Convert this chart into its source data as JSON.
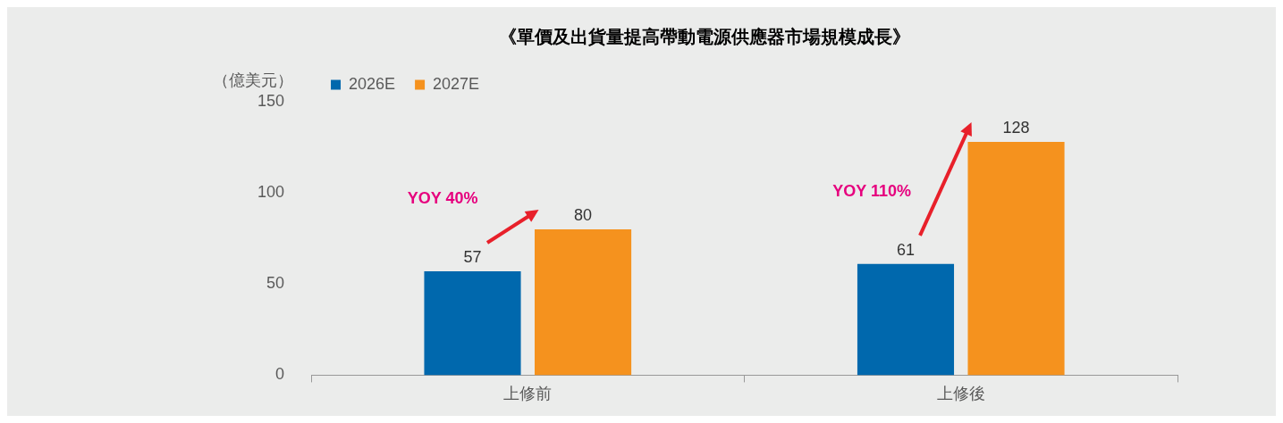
{
  "chart_data": {
    "type": "bar",
    "title": "《單價及出貨量提高帶動電源供應器市場規模成長》",
    "ylabel": "（億美元）",
    "categories": [
      "上修前",
      "上修後"
    ],
    "series": [
      {
        "name": "2026E",
        "color": "#0068ad",
        "values": [
          57,
          61
        ]
      },
      {
        "name": "2027E",
        "color": "#f5921e",
        "values": [
          80,
          128
        ]
      }
    ],
    "ylim": [
      0,
      150
    ],
    "yticks": [
      0,
      50,
      100,
      150
    ],
    "grid": false,
    "legend": "top left",
    "data_labels": true,
    "annotations": [
      "YOY 40%",
      "YOY 110%"
    ]
  }
}
